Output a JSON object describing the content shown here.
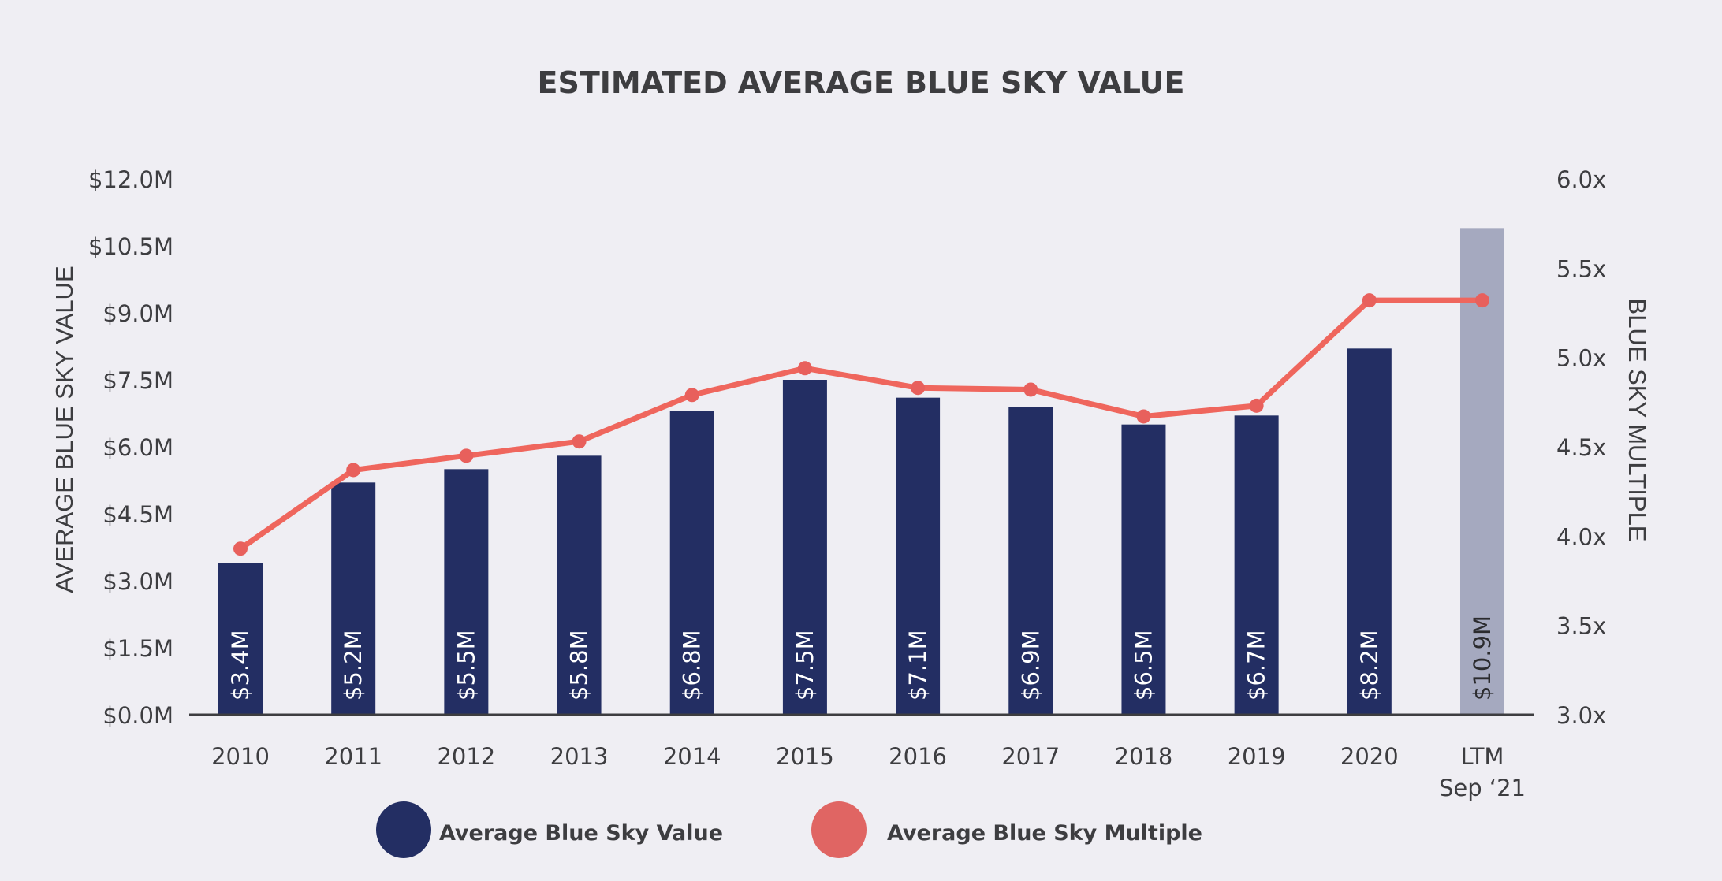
{
  "chart_data": {
    "type": "bar+line",
    "title": "ESTIMATED AVERAGE BLUE SKY VALUE",
    "categories": [
      "2010",
      "2011",
      "2012",
      "2013",
      "2014",
      "2015",
      "2016",
      "2017",
      "2018",
      "2019",
      "2020",
      "LTM\nSep ‘21"
    ],
    "category_lines": [
      [
        "2010"
      ],
      [
        "2011"
      ],
      [
        "2012"
      ],
      [
        "2013"
      ],
      [
        "2014"
      ],
      [
        "2015"
      ],
      [
        "2016"
      ],
      [
        "2017"
      ],
      [
        "2018"
      ],
      [
        "2019"
      ],
      [
        "2020"
      ],
      [
        "LTM",
        "Sep ‘21"
      ]
    ],
    "series": [
      {
        "name": "Average Blue Sky Value",
        "type": "bar",
        "axis": "left",
        "values": [
          3.4,
          5.2,
          5.5,
          5.8,
          6.8,
          7.5,
          7.1,
          6.9,
          6.5,
          6.7,
          8.2,
          10.9
        ],
        "labels": [
          "$3.4M",
          "$5.2M",
          "$5.5M",
          "$5.8M",
          "$6.8M",
          "$7.5M",
          "$7.1M",
          "$6.9M",
          "$6.5M",
          "$6.7M",
          "$8.2M",
          "$10.9M"
        ],
        "color": "#232e63",
        "highlight_color": "#a5a9bf",
        "highlight_label_color": "#2b2b2e",
        "highlight_index": 11
      },
      {
        "name": "Average Blue Sky Multiple",
        "type": "line",
        "axis": "right",
        "values": [
          3.93,
          4.37,
          4.45,
          4.53,
          4.79,
          4.94,
          4.83,
          4.82,
          4.67,
          4.73,
          5.32,
          5.32
        ],
        "color": "#ef665d"
      }
    ],
    "y_left": {
      "label": "AVERAGE BLUE SKY VALUE",
      "range": [
        0,
        12
      ],
      "ticks": [
        0,
        1.5,
        3,
        4.5,
        6,
        7.5,
        9,
        10.5,
        12
      ],
      "tick_labels": [
        "$0.0M",
        "$1.5M",
        "$3.0M",
        "$4.5M",
        "$6.0M",
        "$7.5M",
        "$9.0M",
        "$10.5M",
        "$12.0M"
      ]
    },
    "y_right": {
      "label": "BLUE SKY MULTIPLE",
      "range": [
        3,
        6
      ],
      "ticks": [
        3,
        3.5,
        4,
        4.5,
        5,
        5.5,
        6
      ],
      "tick_labels": [
        "3.0x",
        "3.5x",
        "4.0x",
        "4.5x",
        "5.0x",
        "5.5x",
        "6.0x"
      ]
    },
    "grid": false,
    "legend_position": "bottom",
    "legend": [
      {
        "label": "Average Blue Sky Value",
        "color": "#232e63"
      },
      {
        "label": "Average Blue Sky Multiple",
        "color": "#e06563"
      }
    ]
  }
}
